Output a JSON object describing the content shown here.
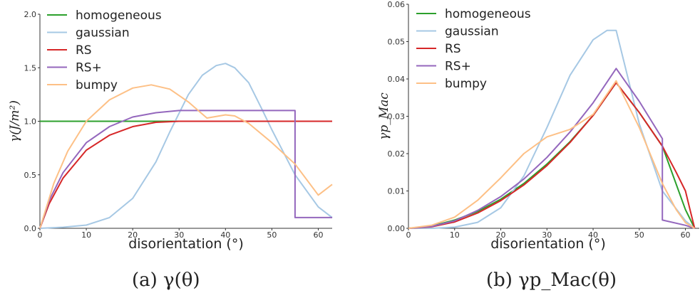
{
  "colors": {
    "homogeneous": "#2ca02c",
    "gaussian": "#a6c8e4",
    "RS": "#d62728",
    "RS+": "#9467bd",
    "bumpy": "#fdc086"
  },
  "chart_data": [
    {
      "type": "line",
      "caption": "(a) γ(θ)",
      "xlabel": "disorientation (°)",
      "ylabel": "γ(J/m²)",
      "xlim": [
        0,
        63
      ],
      "ylim": [
        0,
        2.0
      ],
      "xticks": [
        "0",
        "10",
        "20",
        "30",
        "40",
        "50",
        "60"
      ],
      "yticks": [
        "0.0",
        "0.5",
        "1.0",
        "1.5",
        "2.0"
      ],
      "grid": false,
      "legend": "top-left",
      "series": [
        {
          "name": "homogeneous",
          "x": [
            0,
            63
          ],
          "y": [
            1.0,
            1.0
          ]
        },
        {
          "name": "gaussian",
          "x": [
            0,
            5,
            10,
            15,
            20,
            25,
            28,
            32,
            35,
            38,
            40,
            42,
            45,
            48,
            50,
            55,
            60,
            63
          ],
          "y": [
            0.0,
            0.01,
            0.03,
            0.1,
            0.28,
            0.62,
            0.9,
            1.25,
            1.43,
            1.52,
            1.54,
            1.5,
            1.36,
            1.1,
            0.92,
            0.5,
            0.2,
            0.1
          ]
        },
        {
          "name": "RS",
          "x": [
            0,
            2,
            5,
            10,
            15,
            20,
            25,
            30,
            35,
            40,
            45,
            50,
            55,
            60,
            63
          ],
          "y": [
            0.0,
            0.23,
            0.47,
            0.73,
            0.87,
            0.95,
            0.99,
            1.0,
            1.0,
            1.0,
            1.0,
            1.0,
            1.0,
            1.0,
            1.0
          ]
        },
        {
          "name": "RS+",
          "x": [
            0,
            2,
            5,
            10,
            15,
            20,
            25,
            30,
            35,
            40,
            45,
            50,
            55,
            55,
            60,
            63
          ],
          "y": [
            0.0,
            0.26,
            0.52,
            0.8,
            0.95,
            1.04,
            1.08,
            1.1,
            1.1,
            1.1,
            1.1,
            1.1,
            1.1,
            0.1,
            0.1,
            0.1
          ]
        },
        {
          "name": "bumpy",
          "x": [
            0,
            3,
            6,
            10,
            15,
            20,
            24,
            28,
            32,
            36,
            40,
            42,
            45,
            50,
            55,
            60,
            63
          ],
          "y": [
            0.0,
            0.42,
            0.72,
            1.0,
            1.2,
            1.31,
            1.34,
            1.3,
            1.18,
            1.03,
            1.06,
            1.05,
            0.98,
            0.8,
            0.6,
            0.31,
            0.41
          ]
        }
      ]
    },
    {
      "type": "line",
      "caption": "(b) γp_Mac(θ)",
      "xlabel": "disorientation (°)",
      "ylabel": "γp_Mac",
      "xlim": [
        0,
        63
      ],
      "ylim": [
        0,
        0.06
      ],
      "xticks": [
        "0",
        "10",
        "20",
        "30",
        "40",
        "50",
        "60"
      ],
      "yticks": [
        "0.00",
        "0.01",
        "0.02",
        "0.03",
        "0.04",
        "0.05",
        "0.06"
      ],
      "grid": false,
      "legend": "top-left",
      "series": [
        {
          "name": "homogeneous",
          "x": [
            0,
            5,
            10,
            15,
            20,
            25,
            30,
            35,
            40,
            45,
            50,
            55,
            60,
            62
          ],
          "y": [
            0.0,
            0.0006,
            0.0022,
            0.0045,
            0.0078,
            0.012,
            0.0172,
            0.0232,
            0.0302,
            0.039,
            0.031,
            0.022,
            0.005,
            0.0
          ]
        },
        {
          "name": "gaussian",
          "x": [
            0,
            5,
            10,
            15,
            20,
            25,
            30,
            35,
            40,
            43,
            45,
            47,
            50,
            55,
            60,
            62
          ],
          "y": [
            0.0,
            0.0,
            0.0003,
            0.0016,
            0.0055,
            0.014,
            0.027,
            0.041,
            0.0505,
            0.053,
            0.053,
            0.043,
            0.028,
            0.01,
            0.002,
            0.0
          ]
        },
        {
          "name": "RS",
          "x": [
            0,
            5,
            10,
            15,
            20,
            25,
            30,
            35,
            40,
            45,
            50,
            55,
            58,
            60,
            61,
            62
          ],
          "y": [
            0.0,
            0.0004,
            0.0017,
            0.0041,
            0.0074,
            0.0116,
            0.0168,
            0.023,
            0.0302,
            0.039,
            0.031,
            0.022,
            0.015,
            0.01,
            0.005,
            0.0
          ]
        },
        {
          "name": "RS+",
          "x": [
            0,
            5,
            10,
            15,
            20,
            25,
            30,
            35,
            40,
            45,
            50,
            55,
            55,
            60,
            62
          ],
          "y": [
            0.0,
            0.0005,
            0.002,
            0.0048,
            0.0085,
            0.0132,
            0.019,
            0.0258,
            0.0336,
            0.0428,
            0.034,
            0.024,
            0.0022,
            0.0008,
            0.0
          ]
        },
        {
          "name": "bumpy",
          "x": [
            0,
            5,
            10,
            15,
            20,
            25,
            30,
            35,
            40,
            45,
            50,
            55,
            58,
            60,
            62
          ],
          "y": [
            0.0,
            0.0008,
            0.003,
            0.0075,
            0.0135,
            0.02,
            0.0245,
            0.0265,
            0.0305,
            0.0395,
            0.027,
            0.012,
            0.005,
            0.0015,
            0.0
          ]
        }
      ]
    }
  ]
}
